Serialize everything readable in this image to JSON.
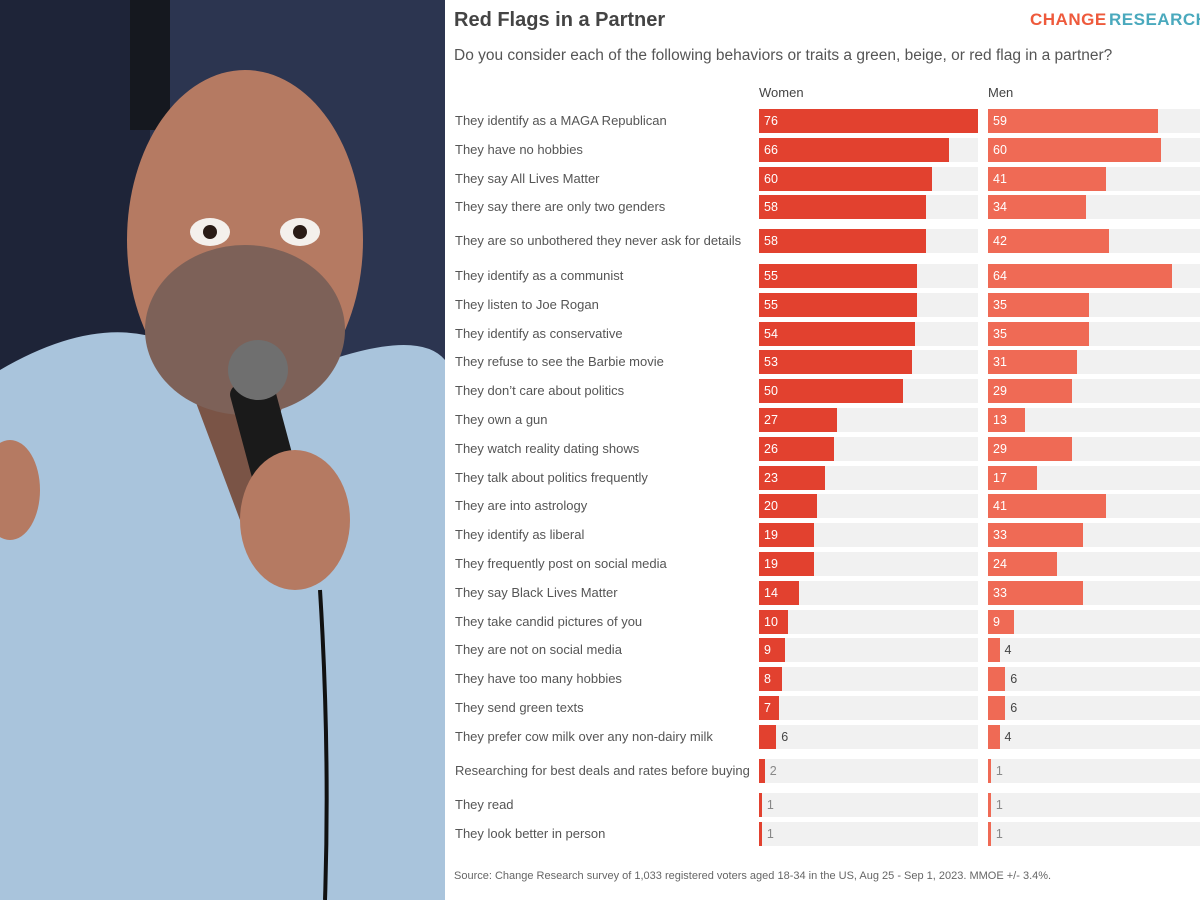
{
  "brand": {
    "first": "CHANGE",
    "second": "RESEARCH"
  },
  "chart_data": {
    "type": "bar",
    "orientation": "horizontal",
    "title": "Red Flags in a Partner",
    "subtitle": "Do you consider each of the following behaviors or traits a green, beige, or red flag in a partner?",
    "categories": [
      "They identify as a MAGA Republican",
      "They have no hobbies",
      "They say All Lives Matter",
      "They say there are only two genders",
      "They are so unbothered they never ask for details",
      "They identify as a communist",
      "They listen to Joe Rogan",
      "They identify as conservative",
      "They refuse to see the Barbie movie",
      "They don’t care about politics",
      "They own a gun",
      "They watch reality dating shows",
      "They talk about politics frequently",
      "They are into astrology",
      "They identify as liberal",
      "They frequently post on social media",
      "They say Black Lives Matter",
      "They take candid pictures of you",
      "They are not on social media",
      "They have too many hobbies",
      "They send green texts",
      "They prefer cow milk over any non-dairy milk",
      "Researching for best deals and rates before buying",
      "They read",
      "They look better in person"
    ],
    "series": [
      {
        "name": "Women",
        "color": "#e2412f",
        "values": [
          76,
          66,
          60,
          58,
          58,
          55,
          55,
          54,
          53,
          50,
          27,
          26,
          23,
          20,
          19,
          19,
          14,
          10,
          9,
          8,
          7,
          6,
          2,
          1,
          1
        ]
      },
      {
        "name": "Men",
        "color": "#ef6a55",
        "values": [
          59,
          60,
          41,
          34,
          42,
          64,
          35,
          35,
          31,
          29,
          13,
          29,
          17,
          41,
          33,
          24,
          33,
          9,
          4,
          6,
          6,
          4,
          1,
          1,
          1
        ]
      }
    ],
    "xlim": [
      0,
      76
    ],
    "source": "Source: Change Research survey of 1,033 registered voters aged 18-34 in the US, Aug 25 - Sep 1, 2023. MMOE +/- 3.4%."
  }
}
